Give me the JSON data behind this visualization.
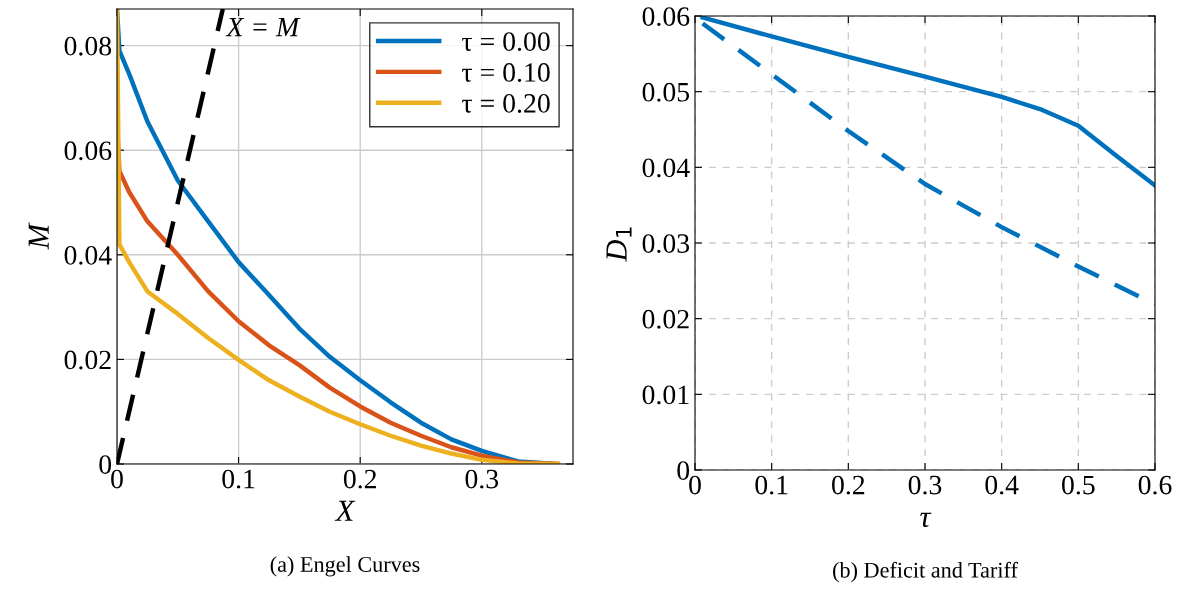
{
  "chart_data": [
    {
      "type": "line",
      "title": "(a) Engel Curves",
      "xlabel": "X",
      "ylabel": "M",
      "xlim": [
        0,
        0.375
      ],
      "ylim": [
        0,
        0.087
      ],
      "xticks": [
        0,
        0.1,
        0.2,
        0.3
      ],
      "yticks": [
        0,
        0.02,
        0.04,
        0.06,
        0.08
      ],
      "grid": true,
      "legend": "top right",
      "marker": "none",
      "x": [
        0,
        0.002,
        0.01,
        0.025,
        0.05,
        0.075,
        0.1,
        0.125,
        0.15,
        0.175,
        0.2,
        0.225,
        0.25,
        0.275,
        0.3,
        0.33,
        0.3625
      ],
      "series": [
        {
          "name": "τ = 0.00",
          "color": "#0072bd",
          "values": [
            0.087,
            0.079,
            0.0746,
            0.0655,
            0.0542,
            0.0464,
            0.0386,
            0.0323,
            0.0259,
            0.0205,
            0.016,
            0.0118,
            0.0079,
            0.0047,
            0.0025,
            0.0005,
            0
          ]
        },
        {
          "name": "τ = 0.10",
          "color": "#d95319",
          "values": [
            0.065,
            0.056,
            0.052,
            0.0464,
            0.04,
            0.033,
            0.0273,
            0.0227,
            0.0189,
            0.0146,
            0.011,
            0.0079,
            0.0054,
            0.0032,
            0.0016,
            0.0003,
            0
          ]
        },
        {
          "name": "τ = 0.20",
          "color": "#edb120",
          "values": [
            0.087,
            0.042,
            0.0386,
            0.033,
            0.0287,
            0.0241,
            0.0199,
            0.016,
            0.0129,
            0.01,
            0.0076,
            0.0054,
            0.0035,
            0.002,
            0.0008,
            0.0001,
            0
          ]
        },
        {
          "color": "#000000",
          "line_style": "dashed",
          "x": [
            0,
            0.087
          ],
          "values": [
            0,
            0.087
          ]
        }
      ],
      "annotations": [
        "X = M"
      ]
    },
    {
      "type": "line",
      "title": "(b) Deficit and Tariff",
      "xlabel": "τ",
      "ylabel": "D$_{1}$",
      "xlim": [
        0,
        0.6
      ],
      "ylim": [
        0,
        0.06
      ],
      "xticks": [
        0,
        0.1,
        0.2,
        0.3,
        0.4,
        0.5,
        0.6
      ],
      "yticks": [
        0,
        0.01,
        0.02,
        0.03,
        0.04,
        0.05,
        0.06
      ],
      "grid": true,
      "marker": "none",
      "x": [
        0.01,
        0.1,
        0.2,
        0.3,
        0.4,
        0.45,
        0.5,
        0.55,
        0.6
      ],
      "series": [
        {
          "color": "#0072bd",
          "line_style": "solid",
          "values": [
            0.0598,
            0.0573,
            0.0546,
            0.052,
            0.0493,
            0.0477,
            0.0455,
            0.0415,
            0.0376
          ]
        },
        {
          "color": "#0072bd",
          "line_style": "dashed",
          "x": [
            0.01,
            0.1,
            0.2,
            0.3,
            0.4,
            0.5,
            0.6
          ],
          "values": [
            0.059,
            0.0523,
            0.0448,
            0.0378,
            0.0321,
            0.0269,
            0.0219
          ]
        }
      ]
    }
  ]
}
